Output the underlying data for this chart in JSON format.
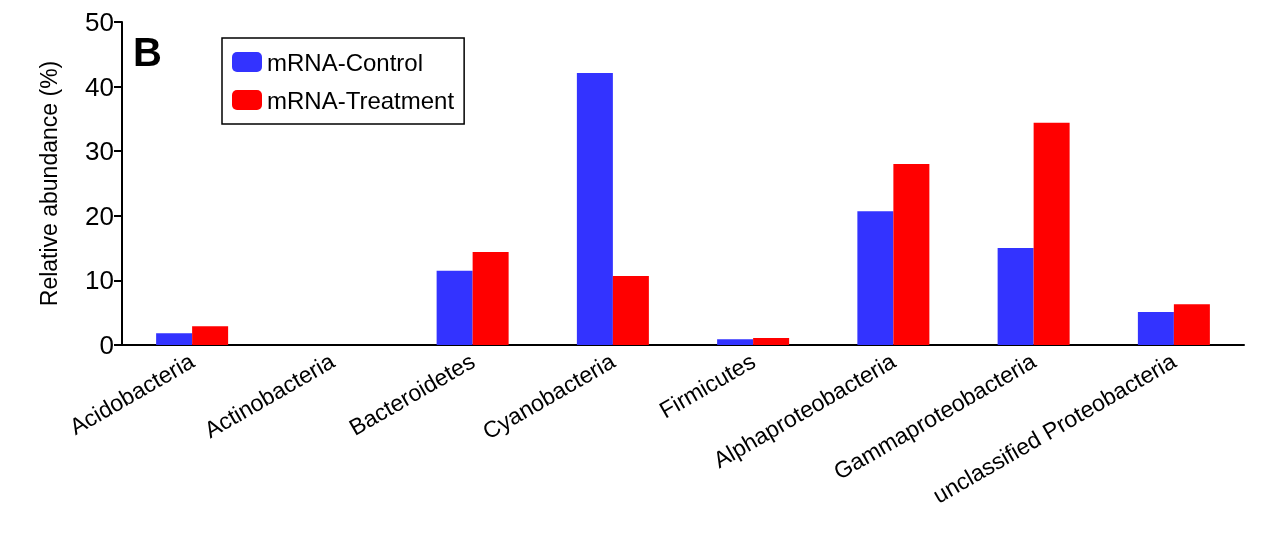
{
  "chart_data": {
    "type": "bar",
    "ylabel": "Relative abundance (%)",
    "annotations": [
      "B"
    ],
    "categories": [
      "Acidobacteria",
      "Actinobacteria",
      "Bacteroidetes",
      "Cyanobacteria",
      "Firmicutes",
      "Alphaproteobacteria",
      "Gammaproteobacteria",
      "unclassified Proteobacteria"
    ],
    "series": [
      {
        "name": "mRNA-Control",
        "color": "#3333ff",
        "values": [
          1.8,
          0,
          11.5,
          42.1,
          0.9,
          20.7,
          15.0,
          5.1
        ]
      },
      {
        "name": "mRNA-Treatment",
        "color": "#ff0000",
        "values": [
          2.9,
          0,
          14.4,
          10.7,
          1.1,
          28.0,
          34.4,
          6.3
        ]
      }
    ],
    "ylim": [
      0,
      50
    ],
    "yticks": [
      0,
      10,
      20,
      30,
      40,
      50
    ],
    "grid": false,
    "legend": "top left"
  }
}
